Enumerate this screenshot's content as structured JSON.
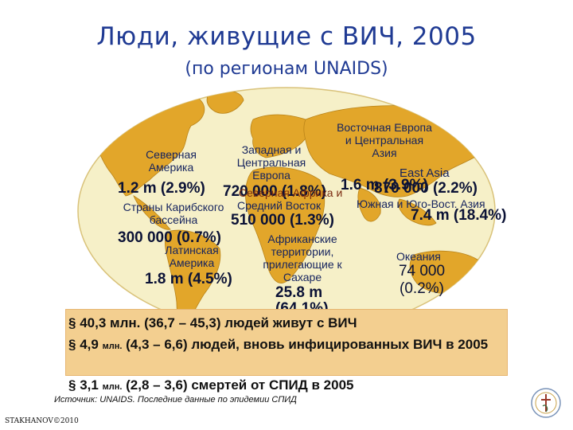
{
  "title": "Люди, живущие с ВИЧ, 2005",
  "subtitle": "(по регионам UNAIDS)",
  "colors": {
    "title": "#1f3a93",
    "ocean": "#f6f0c8",
    "land": "#e2a62a",
    "box": "#f3cf90"
  },
  "regions": [
    {
      "id": "north-america",
      "name": "Северная Америка",
      "value": "1.2 m (2.9%)"
    },
    {
      "id": "caribbean",
      "name": "Страны Карибского бассейна",
      "value": "300 000 (0.7%)"
    },
    {
      "id": "latin-america",
      "name": "Латинская Америка",
      "value": "1.8 m (4.5%)"
    },
    {
      "id": "western-central-europe",
      "name": "Западная и Центральная Европа",
      "value": "720 000 (1.8%)"
    },
    {
      "id": "middle-east",
      "name": "Средний Восток",
      "value": "510 000 (1.3%)",
      "overlap_text": "Северная Африка и"
    },
    {
      "id": "sub-saharan-africa",
      "name": "Африканские территории, прилегающие к Сахаре",
      "value": "25.8 m (64.1%)"
    },
    {
      "id": "eastern-europe-central-asia",
      "name": "Восточная Европа и Центральная Азия",
      "value": "1.6 m (3.9%)"
    },
    {
      "id": "east-asia",
      "name": "East Asia",
      "value": "870 000 (2.2%)"
    },
    {
      "id": "south-southeast-asia",
      "name": "Южная и Юго-Вост. Азия",
      "value": "7.4 m (18.4%)"
    },
    {
      "id": "oceania",
      "name": "Океания",
      "value": "74 000 (0.2%)"
    }
  ],
  "facts": [
    {
      "bullet": "§",
      "main": "40,3 млн. (36,7 – 45,3) людей живут с ВИЧ"
    },
    {
      "bullet": "§",
      "pre": "4,9",
      "unit": "млн.",
      "main": "(4,3 – 6,6) людей, вновь инфицированных ВИЧ в 2005"
    },
    {
      "bullet": "§",
      "pre": "3,1",
      "unit": "млн.",
      "main": "(2,8 – 3,6) смертей от СПИД в 2005"
    }
  ],
  "source": "Источник: UNAIDS. Последние данные по эпидемии СПИД",
  "author": "STAKHANOV©2010"
}
